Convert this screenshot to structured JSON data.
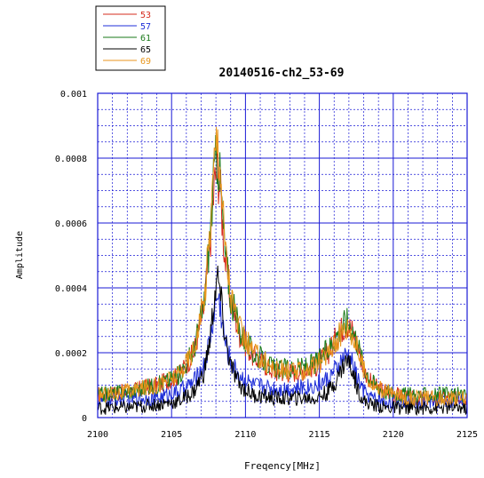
{
  "chart_data": {
    "type": "line",
    "title": "20140516-ch2_53-69",
    "xlabel": "Freqency[MHz]",
    "ylabel": "Amplitude",
    "xlim": [
      2100,
      2125
    ],
    "ylim": [
      0,
      0.001
    ],
    "xticks": [
      "2100",
      "2105",
      "2110",
      "2115",
      "2120",
      "2125"
    ],
    "yticks": [
      "0",
      "0.0002",
      "0.0004",
      "0.0006",
      "0.0008",
      "0.001"
    ],
    "grid": true,
    "legend_position": "top-left",
    "x": [
      2100,
      2102,
      2104,
      2105.5,
      2106.5,
      2107.2,
      2107.6,
      2107.9,
      2108.1,
      2108.3,
      2108.6,
      2109,
      2109.6,
      2110.5,
      2112,
      2113.5,
      2114.8,
      2115.6,
      2116.2,
      2116.6,
      2116.9,
      2117.2,
      2117.6,
      2118,
      2118.6,
      2119.5,
      2121,
      2123,
      2125
    ],
    "series": [
      {
        "name": "53",
        "color": "#d62b1e",
        "values": [
          7e-05,
          8e-05,
          0.0001,
          0.00013,
          0.0002,
          0.00034,
          0.00054,
          0.00072,
          0.00078,
          0.0007,
          0.0005,
          0.00036,
          0.00026,
          0.00019,
          0.00014,
          0.00014,
          0.00016,
          0.0002,
          0.00025,
          0.00028,
          0.00029,
          0.00027,
          0.00022,
          0.00015,
          0.0001,
          8e-05,
          6e-05,
          6e-05,
          6e-05
        ]
      },
      {
        "name": "57",
        "color": "#1f2fd8",
        "values": [
          5e-05,
          6e-05,
          6e-05,
          8e-05,
          0.00011,
          0.00016,
          0.00024,
          0.00033,
          0.00038,
          0.00034,
          0.00024,
          0.00017,
          0.00013,
          0.0001,
          9e-05,
          9e-05,
          0.0001,
          0.00012,
          0.00015,
          0.00018,
          0.00019,
          0.00017,
          0.00012,
          8e-05,
          6e-05,
          5e-05,
          5e-05,
          5e-05,
          5e-05
        ]
      },
      {
        "name": "61",
        "color": "#1a7a1a",
        "values": [
          7e-05,
          8e-05,
          0.0001,
          0.00013,
          0.00021,
          0.00035,
          0.00057,
          0.00076,
          0.00082,
          0.00073,
          0.00052,
          0.00037,
          0.00027,
          0.0002,
          0.00015,
          0.00015,
          0.00017,
          0.00021,
          0.00026,
          0.00029,
          0.0003,
          0.00028,
          0.00023,
          0.00016,
          0.00011,
          8e-05,
          7e-05,
          7e-05,
          7e-05
        ]
      },
      {
        "name": "65",
        "color": "#000000",
        "values": [
          3e-05,
          3e-05,
          4e-05,
          5e-05,
          8e-05,
          0.00014,
          0.00024,
          0.00037,
          0.00043,
          0.00038,
          0.00025,
          0.00016,
          0.0001,
          7e-05,
          6e-05,
          6e-05,
          6e-05,
          8e-05,
          0.00012,
          0.00016,
          0.00018,
          0.00015,
          9e-05,
          5e-05,
          4e-05,
          3e-05,
          3e-05,
          3e-05,
          3e-05
        ]
      },
      {
        "name": "69",
        "color": "#e8961c",
        "values": [
          7e-05,
          8e-05,
          0.0001,
          0.00013,
          0.00021,
          0.00036,
          0.00058,
          0.0008,
          0.00088,
          0.00078,
          0.00054,
          0.00038,
          0.00027,
          0.0002,
          0.00015,
          0.00014,
          0.00016,
          0.0002,
          0.00024,
          0.00027,
          0.00028,
          0.00026,
          0.00021,
          0.00015,
          0.0001,
          8e-05,
          6e-05,
          6e-05,
          6e-05
        ]
      }
    ]
  }
}
